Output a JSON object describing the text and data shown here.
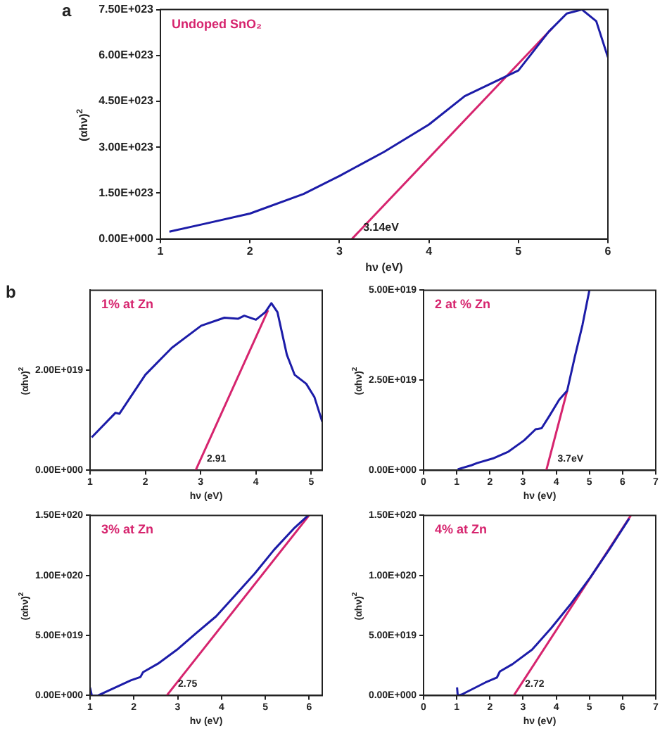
{
  "chart_data": [
    {
      "type": "line",
      "title": "Undoped SnO₂",
      "xlabel": "hν (eV)",
      "ylabel": "(αhν)$^{2}$",
      "annotations": [
        "a",
        {
          "text": "3.14eV",
          "x": 3.14,
          "y": 0
        }
      ],
      "legend": false,
      "grid": false,
      "marker": "none",
      "xlim": [
        1,
        6
      ],
      "xticks": [
        1,
        2,
        3,
        4,
        5,
        6
      ],
      "ylim": [
        0,
        7.5e+23
      ],
      "yticks": [
        {
          "value": 0,
          "label": "0.00E+000"
        },
        {
          "value": 1.5e+23,
          "label": "1.50E+023"
        },
        {
          "value": 3e+23,
          "label": "3.00E+023"
        },
        {
          "value": 4.5e+23,
          "label": "4.50E+023"
        },
        {
          "value": 6e+23,
          "label": "6.00E+023"
        },
        {
          "value": 7.5e+23,
          "label": "7.50E+023"
        }
      ],
      "series": [
        {
          "color": "#1c1ca8",
          "x": [
            1.1,
            1.5,
            2.0,
            2.6,
            3.0,
            3.5,
            4.0,
            4.4,
            4.7,
            5.0,
            5.34,
            5.54,
            5.71,
            5.87,
            6.0
          ],
          "values": [
            2.4e+22,
            5e+22,
            8.3e+22,
            1.47e+23,
            2.06e+23,
            2.85e+23,
            3.74e+23,
            4.67e+23,
            5.09e+23,
            5.51e+23,
            6.78e+23,
            7.37e+23,
            7.5e+23,
            7.12e+23,
            5.94e+23
          ]
        },
        {
          "type": "line",
          "color": "#d6246e",
          "x": [
            3.14,
            5.38
          ],
          "values": [
            0,
            6.9e+23
          ]
        }
      ]
    },
    {
      "type": "line",
      "title": "1% at Zn",
      "xlabel": "hν (eV)",
      "ylabel": "(αhν)$^{2}$",
      "annotations": [
        "b",
        {
          "text": "2.91",
          "x": 2.91,
          "y": 0
        }
      ],
      "legend": false,
      "grid": false,
      "marker": "none",
      "xlim": [
        1,
        5.2
      ],
      "xticks": [
        1,
        2,
        3,
        4,
        5
      ],
      "ylim": [
        0,
        3.6e+19
      ],
      "yticks": [
        {
          "value": 0,
          "label": "0.00E+000"
        },
        {
          "value": 2e+19,
          "label": "2.00E+019"
        }
      ],
      "series": [
        {
          "color": "#1c1ca8",
          "x": [
            1.03,
            1.46,
            1.53,
            2.0,
            2.48,
            3.01,
            3.43,
            3.68,
            3.79,
            4.0,
            4.17,
            4.28,
            4.39,
            4.56,
            4.7,
            4.91,
            5.06,
            5.2
          ],
          "values": [
            6.6e+18,
            1.15e+19,
            1.13e+19,
            1.91e+19,
            2.45e+19,
            2.89e+19,
            3.05e+19,
            3.03e+19,
            3.09e+19,
            3.01e+19,
            3.16e+19,
            3.34e+19,
            3.16e+19,
            2.31e+19,
            1.91e+19,
            1.73e+19,
            1.46e+19,
            9.7e+18
          ]
        },
        {
          "type": "line",
          "color": "#d6246e",
          "x": [
            2.91,
            4.22
          ],
          "values": [
            0,
            3.2e+19
          ]
        }
      ]
    },
    {
      "type": "line",
      "title": "2 at % Zn",
      "xlabel": "hν (eV)",
      "ylabel": "(αhν)$^{2}$",
      "annotations": [
        {
          "text": "3.7eV",
          "x": 3.7,
          "y": 0
        }
      ],
      "legend": false,
      "grid": false,
      "marker": "none",
      "xlim": [
        0,
        7
      ],
      "xticks": [
        0,
        1,
        2,
        3,
        4,
        5,
        6,
        7
      ],
      "ylim": [
        0,
        5e+19
      ],
      "yticks": [
        {
          "value": 0,
          "label": "0.00E+000"
        },
        {
          "value": 2.5e+19,
          "label": "2.50E+019"
        },
        {
          "value": 5e+19,
          "label": "5.00E+019"
        }
      ],
      "series": [
        {
          "color": "#1c1ca8",
          "x": [
            1.03,
            1.44,
            1.61,
            2.09,
            2.56,
            3.03,
            3.38,
            3.56,
            3.8,
            4.09,
            4.33,
            4.56,
            4.79,
            5.0
          ],
          "values": [
            3e+17,
            1.4e+18,
            2e+18,
            3.3e+18,
            5.2e+18,
            8.3e+18,
            1.14e+19,
            1.17e+19,
            1.52e+19,
            1.96e+19,
            2.21e+19,
            3.15e+19,
            4.03e+19,
            5e+19
          ]
        },
        {
          "type": "line",
          "color": "#d6246e",
          "x": [
            3.7,
            4.33
          ],
          "values": [
            0,
            2.21e+19
          ]
        }
      ]
    },
    {
      "type": "line",
      "title": "3% at Zn",
      "xlabel": "hν (eV)",
      "ylabel": "(αhν)$^{2}$",
      "annotations": [
        {
          "text": "2.75",
          "x": 2.75,
          "y": 0
        }
      ],
      "legend": false,
      "grid": false,
      "marker": "none",
      "xlim": [
        1,
        6.3
      ],
      "xticks": [
        1,
        2,
        3,
        4,
        5,
        6
      ],
      "ylim": [
        0,
        1.5e+20
      ],
      "yticks": [
        {
          "value": 0,
          "label": "0.00E+000"
        },
        {
          "value": 5e+19,
          "label": "5.00E+019"
        },
        {
          "value": 1e+20,
          "label": "1.00E+020"
        },
        {
          "value": 1.5e+20,
          "label": "1.50E+020"
        }
      ],
      "series": [
        {
          "color": "#1c1ca8",
          "x": [
            1.0,
            1.04,
            1.18,
            1.93,
            2.15,
            2.21,
            2.55,
            2.99,
            3.43,
            3.88,
            4.32,
            4.76,
            5.2,
            5.65,
            5.98
          ],
          "values": [
            6.7e+18,
            0,
            0,
            1.26e+19,
            1.54e+19,
            1.94e+19,
            2.65e+19,
            3.83e+19,
            5.22e+19,
            6.6e+19,
            8.38e+19,
            1.016e+20,
            1.213e+20,
            1.39e+20,
            1.5e+20
          ]
        },
        {
          "type": "line",
          "color": "#d6246e",
          "x": [
            2.75,
            6.0
          ],
          "values": [
            0,
            1.5e+20
          ]
        }
      ]
    },
    {
      "type": "line",
      "title": "4% at Zn",
      "xlabel": "hν (eV)",
      "ylabel": "(αhν)$^{2}$",
      "annotations": [
        {
          "text": "2.72",
          "x": 2.72,
          "y": 0
        }
      ],
      "legend": false,
      "grid": false,
      "marker": "none",
      "xlim": [
        0,
        7
      ],
      "xticks": [
        0,
        1,
        2,
        3,
        4,
        5,
        6,
        7
      ],
      "ylim": [
        0,
        1.5e+20
      ],
      "yticks": [
        {
          "value": 0,
          "label": "0.00E+000"
        },
        {
          "value": 5e+19,
          "label": "5.00E+019"
        },
        {
          "value": 1e+20,
          "label": "1.00E+020"
        },
        {
          "value": 1.5e+20,
          "label": "1.50E+020"
        }
      ],
      "series": [
        {
          "color": "#1c1ca8",
          "x": [
            1.01,
            1.03,
            1.15,
            1.86,
            2.21,
            2.3,
            2.68,
            3.27,
            3.85,
            4.44,
            5.03,
            5.62,
            6.2
          ],
          "values": [
            6.8e+18,
            0,
            8e+17,
            1.08e+19,
            1.49e+19,
            2e+19,
            2.61e+19,
            3.82e+19,
            5.62e+19,
            7.63e+19,
            9.84e+19,
            1.225e+20,
            1.474e+20
          ]
        },
        {
          "type": "line",
          "color": "#d6246e",
          "x": [
            2.72,
            6.25
          ],
          "values": [
            0,
            1.5e+20
          ]
        }
      ]
    }
  ]
}
